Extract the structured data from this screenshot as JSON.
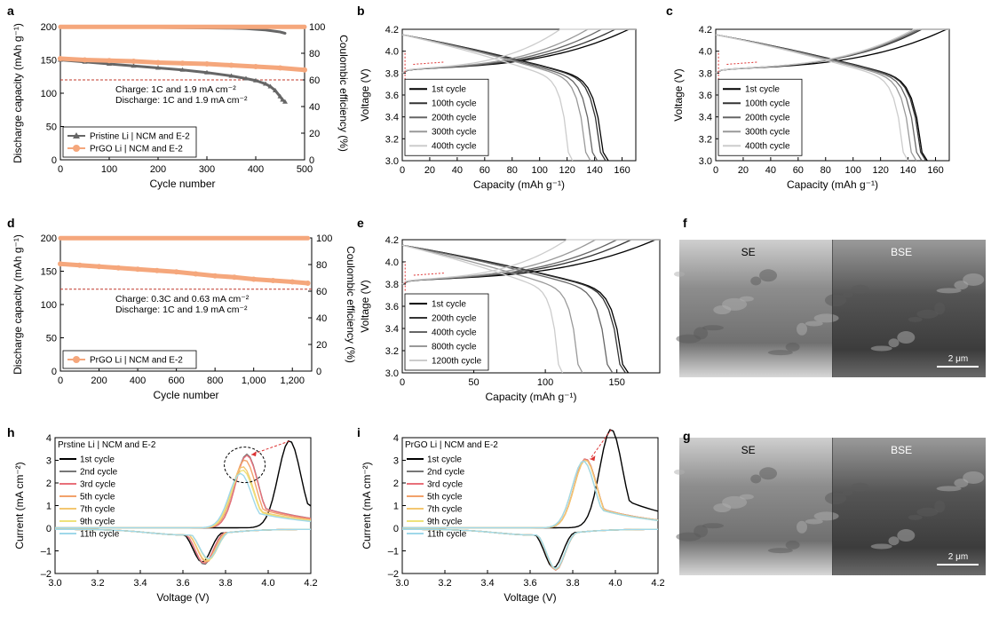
{
  "figure": {
    "panels": [
      {
        "id": "a",
        "label": "a"
      },
      {
        "id": "b",
        "label": "b"
      },
      {
        "id": "c",
        "label": "c"
      },
      {
        "id": "d",
        "label": "d"
      },
      {
        "id": "e",
        "label": "e"
      },
      {
        "id": "f",
        "label": "f"
      },
      {
        "id": "h",
        "label": "h"
      },
      {
        "id": "i",
        "label": "i"
      },
      {
        "id": "g",
        "label": "g"
      }
    ]
  },
  "images": {
    "f": {
      "left_label": "SE",
      "right_label": "BSE",
      "scale_bar": "2 μm"
    },
    "g": {
      "left_label": "SE",
      "right_label": "BSE",
      "scale_bar": "2 μm"
    }
  },
  "chart_data": [
    {
      "panel": "a",
      "type": "scatter",
      "xlabel": "Cycle number",
      "ylabel": "Discharge capacity (mAh g⁻¹)",
      "y2label": "Coulombic efficiency (%)",
      "xlim": [
        0,
        500
      ],
      "ylim": [
        0,
        200
      ],
      "y2lim": [
        0,
        100
      ],
      "xticks": [
        "0",
        "100",
        "200",
        "300",
        "400",
        "500"
      ],
      "yticks": [
        "0",
        "50",
        "100",
        "150",
        "200"
      ],
      "y2ticks": [
        "0",
        "20",
        "40",
        "60",
        "80",
        "100"
      ],
      "reference_line": 120,
      "annotation": [
        "Charge: 1C and 1.9 mA cm⁻²",
        "Discharge: 1C and 1.9 mA cm⁻²"
      ],
      "legend_position": "bottom-left",
      "series": [
        {
          "name": "Pristine Li | NCM and E-2",
          "color": "#666666",
          "marker": "triangle",
          "x": [
            0,
            50,
            100,
            150,
            200,
            250,
            300,
            350,
            380,
            400,
            420,
            430,
            440,
            450,
            455,
            460
          ],
          "capacity": [
            150,
            147,
            144,
            141,
            138,
            135,
            131,
            126,
            122,
            119,
            114,
            110,
            104,
            95,
            90,
            87
          ],
          "ce": [
            99.5,
            99.5,
            99.5,
            99.4,
            99.3,
            99.2,
            99,
            98.8,
            98.5,
            98,
            97.5,
            97,
            96.5,
            96,
            95.5,
            95
          ]
        },
        {
          "name": "PrGO Li | NCM and E-2",
          "color": "#f5a77c",
          "marker": "circle",
          "x": [
            0,
            50,
            100,
            150,
            200,
            250,
            300,
            350,
            400,
            450,
            500
          ],
          "capacity": [
            152,
            150,
            149,
            148,
            146,
            145,
            144,
            142,
            140,
            138,
            135
          ],
          "ce": [
            99.8,
            99.8,
            99.8,
            99.8,
            99.8,
            99.8,
            99.8,
            99.8,
            99.8,
            99.8,
            99.8
          ]
        }
      ]
    },
    {
      "panel": "b",
      "type": "line",
      "xlabel": "Capacity (mAh g⁻¹)",
      "ylabel": "Voltage (V)",
      "xlim": [
        0,
        170
      ],
      "ylim": [
        3.0,
        4.2
      ],
      "xticks": [
        "0",
        "20",
        "40",
        "60",
        "80",
        "100",
        "120",
        "140",
        "160"
      ],
      "yticks": [
        "3.0",
        "3.2",
        "3.4",
        "3.6",
        "3.8",
        "4.0",
        "4.2"
      ],
      "legend_position": "center-left",
      "series": [
        {
          "name": "1st cycle",
          "color": "#000000",
          "charge_cap": 165,
          "discharge_cap": 150
        },
        {
          "name": "100th cycle",
          "color": "#333333",
          "charge_cap": 155,
          "discharge_cap": 148
        },
        {
          "name": "200th cycle",
          "color": "#666666",
          "charge_cap": 145,
          "discharge_cap": 142
        },
        {
          "name": "300th cycle",
          "color": "#999999",
          "charge_cap": 135,
          "discharge_cap": 137
        },
        {
          "name": "400th cycle",
          "color": "#cccccc",
          "charge_cap": 115,
          "discharge_cap": 124
        }
      ]
    },
    {
      "panel": "c",
      "type": "line",
      "xlabel": "Capacity (mAh g⁻¹)",
      "ylabel": "Voltage (V)",
      "xlim": [
        0,
        170
      ],
      "ylim": [
        3.0,
        4.2
      ],
      "xticks": [
        "0",
        "20",
        "40",
        "60",
        "80",
        "100",
        "120",
        "140",
        "160"
      ],
      "yticks": [
        "3.0",
        "3.2",
        "3.4",
        "3.6",
        "3.8",
        "4.0",
        "4.2"
      ],
      "legend_position": "center-left",
      "series": [
        {
          "name": "1st cycle",
          "color": "#000000",
          "charge_cap": 168,
          "discharge_cap": 154
        },
        {
          "name": "100th cycle",
          "color": "#333333",
          "charge_cap": 150,
          "discharge_cap": 153
        },
        {
          "name": "200th cycle",
          "color": "#666666",
          "charge_cap": 148,
          "discharge_cap": 150
        },
        {
          "name": "300th cycle",
          "color": "#999999",
          "charge_cap": 146,
          "discharge_cap": 146
        },
        {
          "name": "400th cycle",
          "color": "#cccccc",
          "charge_cap": 144,
          "discharge_cap": 140
        }
      ]
    },
    {
      "panel": "d",
      "type": "scatter",
      "xlabel": "Cycle number",
      "ylabel": "Discharge capacity (mAh g⁻¹)",
      "y2label": "Coulombic efficiency (%)",
      "xlim": [
        0,
        1300
      ],
      "ylim": [
        0,
        200
      ],
      "y2lim": [
        0,
        100
      ],
      "xticks": [
        "0",
        "200",
        "400",
        "600",
        "800",
        "1,000",
        "1,200"
      ],
      "yticks": [
        "0",
        "50",
        "100",
        "150",
        "200"
      ],
      "y2ticks": [
        "0",
        "20",
        "40",
        "60",
        "80",
        "100"
      ],
      "reference_line": 123,
      "annotation": [
        "Charge: 0.3C and 0.63 mA cm⁻²",
        "Discharge: 1C and 1.9 mA cm⁻²"
      ],
      "legend_position": "bottom-left",
      "series": [
        {
          "name": "PrGO Li | NCM and E-2",
          "color": "#f5a77c",
          "marker": "circle",
          "x": [
            0,
            100,
            200,
            300,
            400,
            500,
            600,
            700,
            800,
            900,
            1000,
            1100,
            1200,
            1280
          ],
          "capacity": [
            161,
            159,
            157,
            155,
            153,
            151,
            149,
            146,
            143,
            141,
            138,
            136,
            134,
            132
          ],
          "ce": [
            99.8,
            99.8,
            99.8,
            99.8,
            99.8,
            99.8,
            99.8,
            99.8,
            99.8,
            99.8,
            99.8,
            99.8,
            99.8,
            99.8
          ]
        }
      ]
    },
    {
      "panel": "e",
      "type": "line",
      "xlabel": "Capacity (mAh g⁻¹)",
      "ylabel": "Voltage (V)",
      "xlim": [
        0,
        180
      ],
      "ylim": [
        3.0,
        4.2
      ],
      "xticks": [
        "0",
        "50",
        "100",
        "150"
      ],
      "yticks": [
        "3.0",
        "3.2",
        "3.4",
        "3.6",
        "3.8",
        "4.0",
        "4.2"
      ],
      "legend_position": "bottom-left",
      "series": [
        {
          "name": "1st cycle",
          "color": "#000000",
          "charge_cap": 177,
          "discharge_cap": 158
        },
        {
          "name": "200th cycle",
          "color": "#333333",
          "charge_cap": 160,
          "discharge_cap": 156
        },
        {
          "name": "400th cycle",
          "color": "#666666",
          "charge_cap": 150,
          "discharge_cap": 147
        },
        {
          "name": "800th cycle",
          "color": "#999999",
          "charge_cap": 135,
          "discharge_cap": 126
        },
        {
          "name": "1200th cycle",
          "color": "#cccccc",
          "charge_cap": 115,
          "discharge_cap": 112
        }
      ]
    },
    {
      "panel": "h",
      "type": "line",
      "xlabel": "Voltage (V)",
      "ylabel": "Current (mA cm⁻²)",
      "xlim": [
        3.0,
        4.2
      ],
      "ylim": [
        -2,
        4
      ],
      "xticks": [
        "3.0",
        "3.2",
        "3.4",
        "3.6",
        "3.8",
        "4.0",
        "4.2"
      ],
      "yticks": [
        "–2",
        "–1",
        "0",
        "1",
        "2",
        "3",
        "4"
      ],
      "title": "Prstine Li | NCM and E-2",
      "legend_position": "top-left",
      "series": [
        {
          "name": "1st cycle",
          "color": "#000000",
          "ox_peak_v": 4.1,
          "ox_peak_i": 3.85,
          "red_peak_v": 3.69,
          "red_peak_i": -1.45
        },
        {
          "name": "2nd cycle",
          "color": "#777777",
          "ox_peak_v": 3.9,
          "ox_peak_i": 3.25,
          "red_peak_v": 3.7,
          "red_peak_i": -1.55
        },
        {
          "name": "3rd cycle",
          "color": "#e8707a",
          "ox_peak_v": 3.9,
          "ox_peak_i": 3.2,
          "red_peak_v": 3.7,
          "red_peak_i": -1.5
        },
        {
          "name": "5th cycle",
          "color": "#f2a26b",
          "ox_peak_v": 3.89,
          "ox_peak_i": 3.0,
          "red_peak_v": 3.71,
          "red_peak_i": -1.45
        },
        {
          "name": "7th cycle",
          "color": "#f3c771",
          "ox_peak_v": 3.88,
          "ox_peak_i": 2.7,
          "red_peak_v": 3.71,
          "red_peak_i": -1.4
        },
        {
          "name": "9th cycle",
          "color": "#eee27a",
          "ox_peak_v": 3.88,
          "ox_peak_i": 2.55,
          "red_peak_v": 3.72,
          "red_peak_i": -1.35
        },
        {
          "name": "11th cycle",
          "color": "#9fd8ea",
          "ox_peak_v": 3.87,
          "ox_peak_i": 2.4,
          "red_peak_v": 3.72,
          "red_peak_i": -1.3
        }
      ]
    },
    {
      "panel": "i",
      "type": "line",
      "xlabel": "Voltage (V)",
      "ylabel": "Current (mA cm⁻²)",
      "xlim": [
        3.0,
        4.2
      ],
      "ylim": [
        -2,
        4
      ],
      "xticks": [
        "3.0",
        "3.2",
        "3.4",
        "3.6",
        "3.8",
        "4.0",
        "4.2"
      ],
      "yticks": [
        "–2",
        "–1",
        "0",
        "1",
        "2",
        "3",
        "4"
      ],
      "title": "PrGO Li | NCM and E-2",
      "legend_position": "top-left",
      "series": [
        {
          "name": "1st cycle",
          "color": "#000000",
          "ox_peak_v": 3.98,
          "ox_peak_i": 4.35,
          "red_peak_v": 3.71,
          "red_peak_i": -1.7
        },
        {
          "name": "2nd cycle",
          "color": "#777777",
          "ox_peak_v": 3.86,
          "ox_peak_i": 3.05,
          "red_peak_v": 3.72,
          "red_peak_i": -1.8
        },
        {
          "name": "3rd cycle",
          "color": "#e8707a",
          "ox_peak_v": 3.86,
          "ox_peak_i": 3.05,
          "red_peak_v": 3.72,
          "red_peak_i": -1.8
        },
        {
          "name": "5th cycle",
          "color": "#f2a26b",
          "ox_peak_v": 3.86,
          "ox_peak_i": 3.0,
          "red_peak_v": 3.72,
          "red_peak_i": -1.78
        },
        {
          "name": "7th cycle",
          "color": "#f3c771",
          "ox_peak_v": 3.86,
          "ox_peak_i": 3.0,
          "red_peak_v": 3.72,
          "red_peak_i": -1.78
        },
        {
          "name": "9th cycle",
          "color": "#eee27a",
          "ox_peak_v": 3.85,
          "ox_peak_i": 2.95,
          "red_peak_v": 3.72,
          "red_peak_i": -1.75
        },
        {
          "name": "11th cycle",
          "color": "#9fd8ea",
          "ox_peak_v": 3.85,
          "ox_peak_i": 2.95,
          "red_peak_v": 3.72,
          "red_peak_i": -1.75
        }
      ]
    }
  ]
}
